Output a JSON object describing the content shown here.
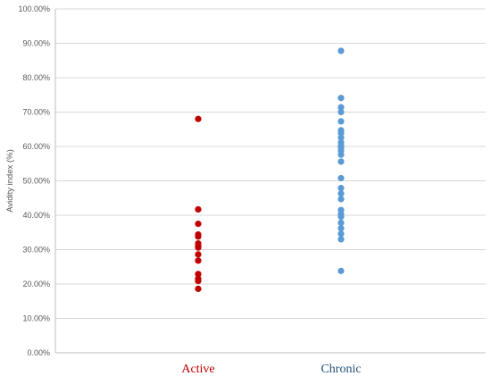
{
  "chart_data": {
    "type": "scatter",
    "title": "",
    "ylabel": "Avidity index (%)",
    "xlabel": "",
    "ylim": [
      0,
      100
    ],
    "ytick_step": 10,
    "ytick_format": "percent_2dp",
    "grid": true,
    "legend": "none",
    "categories": [
      "Active",
      "Chronic"
    ],
    "series": [
      {
        "category": "Active",
        "color": "#c00000",
        "label_color": "#c00000",
        "values": [
          68.0,
          41.7,
          37.5,
          34.4,
          33.8,
          31.8,
          31.0,
          30.6,
          28.6,
          26.8,
          22.9,
          21.5,
          20.9,
          18.6
        ]
      },
      {
        "category": "Chronic",
        "color": "#5b9bd5",
        "label_color": "#1f4e79",
        "values": [
          87.8,
          74.1,
          71.4,
          70.0,
          67.3,
          64.7,
          63.9,
          62.6,
          61.2,
          60.2,
          59.6,
          58.7,
          57.6,
          55.6,
          50.8,
          47.9,
          46.3,
          44.7,
          41.5,
          40.3,
          39.6,
          37.8,
          36.2,
          34.6,
          33.0,
          23.8
        ]
      }
    ]
  }
}
